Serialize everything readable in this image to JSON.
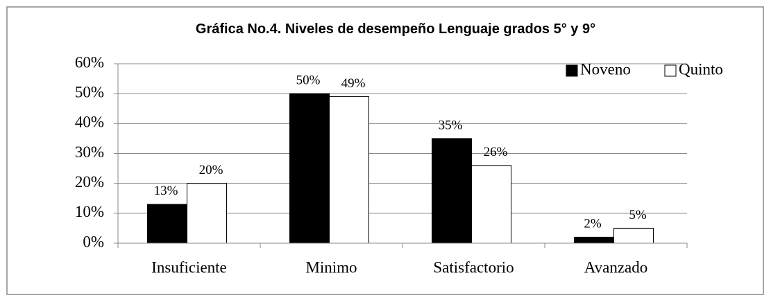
{
  "chart_data": {
    "type": "bar",
    "title": "Gráfica  No.4. Niveles de desempeño Lenguaje grados 5° y 9°",
    "categories": [
      "Insuficiente",
      "Minimo",
      "Satisfactorio",
      "Avanzado"
    ],
    "series": [
      {
        "name": "Noveno",
        "color": "#000000",
        "values": [
          13,
          50,
          35,
          2
        ],
        "value_labels": [
          "13%",
          "50%",
          "35%",
          "2%"
        ]
      },
      {
        "name": "Quinto",
        "color": "#ffffff",
        "values": [
          20,
          49,
          26,
          5
        ],
        "value_labels": [
          "20%",
          "49%",
          "26%",
          "5%"
        ]
      }
    ],
    "ylim": [
      0,
      60
    ],
    "yticks": [
      {
        "value": 0,
        "label": "0%"
      },
      {
        "value": 10,
        "label": "10%"
      },
      {
        "value": 20,
        "label": "20%"
      },
      {
        "value": 30,
        "label": "30%"
      },
      {
        "value": 40,
        "label": "40%"
      },
      {
        "value": 50,
        "label": "50%"
      },
      {
        "value": 60,
        "label": "60%"
      }
    ],
    "grid": true,
    "legend": "upper right"
  }
}
